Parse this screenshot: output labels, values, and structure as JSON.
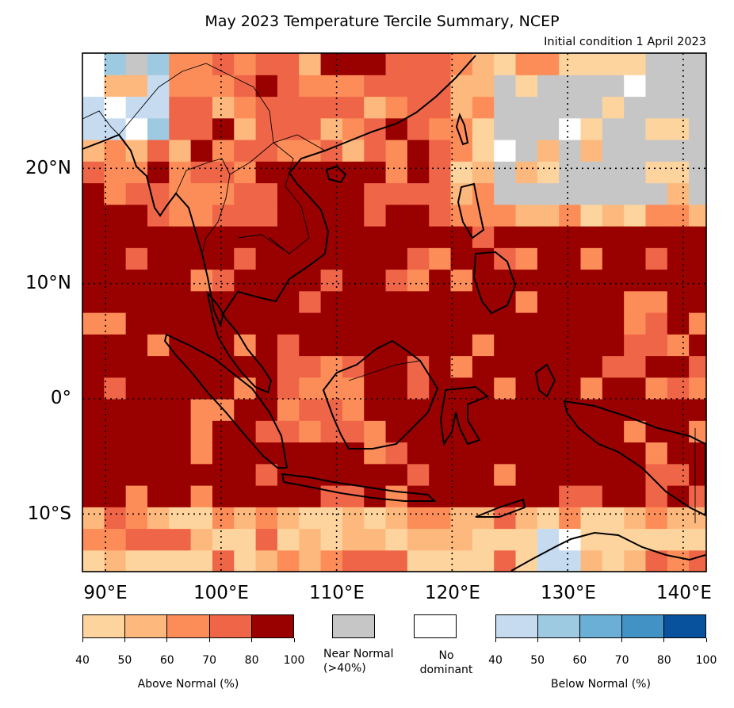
{
  "title": "May 2023 Temperature Tercile Summary, NCEP",
  "subtitle": "Initial condition 1 April 2023",
  "map": {
    "lon_range": [
      88,
      142
    ],
    "lat_range": [
      -15,
      30
    ],
    "lat_labels": [
      "20°N",
      "10°N",
      "0°",
      "10°S"
    ],
    "lon_labels": [
      "90°E",
      "100°E",
      "110°E",
      "120°E",
      "130°E",
      "140°E"
    ],
    "gridline_style": "dotted",
    "legend_placement": "bottom"
  },
  "legend": {
    "above": {
      "label": "Above Normal (%)",
      "ticks": [
        "40",
        "50",
        "60",
        "70",
        "80",
        "100"
      ],
      "colors": [
        "#fdd49e",
        "#fdb97d",
        "#fc8d59",
        "#ef6548",
        "#990000"
      ]
    },
    "near": {
      "label": "Near Normal\n(>40%)",
      "color": "#c6c6c6"
    },
    "none": {
      "label": "No\ndominant",
      "color": "#ffffff"
    },
    "below": {
      "label": "Below Normal (%)",
      "ticks": [
        "40",
        "50",
        "60",
        "70",
        "80",
        "100"
      ],
      "colors": [
        "#c6dbef",
        "#9ecae1",
        "#6baed6",
        "#4292c6",
        "#08519c"
      ]
    }
  }
}
